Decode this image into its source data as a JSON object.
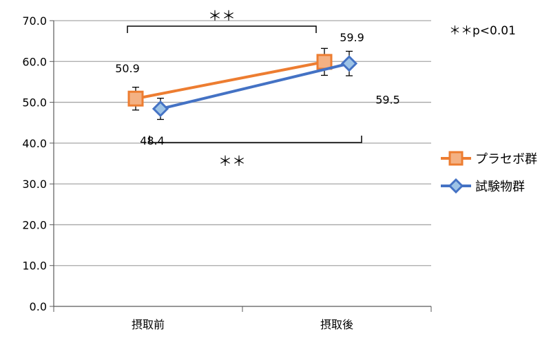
{
  "chart_data": {
    "type": "line",
    "title": "",
    "xlabel": "",
    "ylabel": "",
    "categories": [
      "摂取前",
      "摂取後"
    ],
    "ylim": [
      0,
      70
    ],
    "yticks": [
      "0.0",
      "10.0",
      "20.0",
      "30.0",
      "40.0",
      "50.0",
      "60.0",
      "70.0"
    ],
    "grid": true,
    "legend_position": "right",
    "series": [
      {
        "name": "プラセボ群",
        "color": "#ED7D31",
        "marker": "square",
        "values": [
          50.9,
          59.9
        ],
        "error": [
          2.8,
          3.3
        ],
        "data_labels": [
          "50.9",
          "59.9"
        ]
      },
      {
        "name": "試験物群",
        "color": "#4472C4",
        "marker": "diamond",
        "values": [
          48.4,
          59.5
        ],
        "error": [
          2.6,
          3.0
        ],
        "data_labels": [
          "48.4",
          "59.5"
        ]
      }
    ],
    "significance": [
      {
        "label": "＊＊",
        "between": "プラセボ群"
      },
      {
        "label": "＊＊",
        "between": "試験物群"
      }
    ],
    "annotation": "＊＊p<0.01"
  }
}
